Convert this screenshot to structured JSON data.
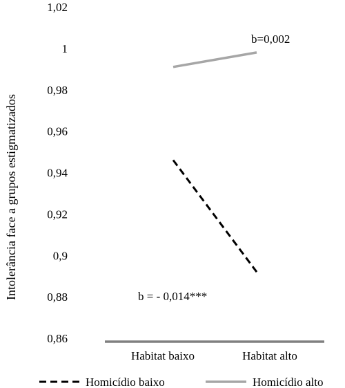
{
  "chart_data": {
    "type": "line",
    "ylabel": "Intolerância face a grupos estigmatizados",
    "xlabel": "",
    "categories": [
      "Habitat baixo",
      "Habitat alto"
    ],
    "ylim": [
      0.86,
      1.02
    ],
    "yticks": [
      0.86,
      0.88,
      0.9,
      0.92,
      0.94,
      0.96,
      0.98,
      1,
      1.02
    ],
    "ytick_labels": [
      "0,86",
      "0,88",
      "0,9",
      "0,92",
      "0,94",
      "0,96",
      "0,98",
      "1",
      "1,02"
    ],
    "grid": false,
    "legend_position": "bottom",
    "series": [
      {
        "name": "Homicídio baixo",
        "values": [
          0.946,
          0.892
        ],
        "color": "#000000",
        "style": "dashed"
      },
      {
        "name": "Homicídio alto",
        "values": [
          0.991,
          0.998
        ],
        "color": "#a6a6a6",
        "style": "solid"
      }
    ],
    "annotations": [
      {
        "text": "b=0,002",
        "series": "Homicídio alto"
      },
      {
        "text": "b = - 0,014***",
        "series": "Homicídio baixo"
      }
    ],
    "baseline_color": "#808080"
  }
}
